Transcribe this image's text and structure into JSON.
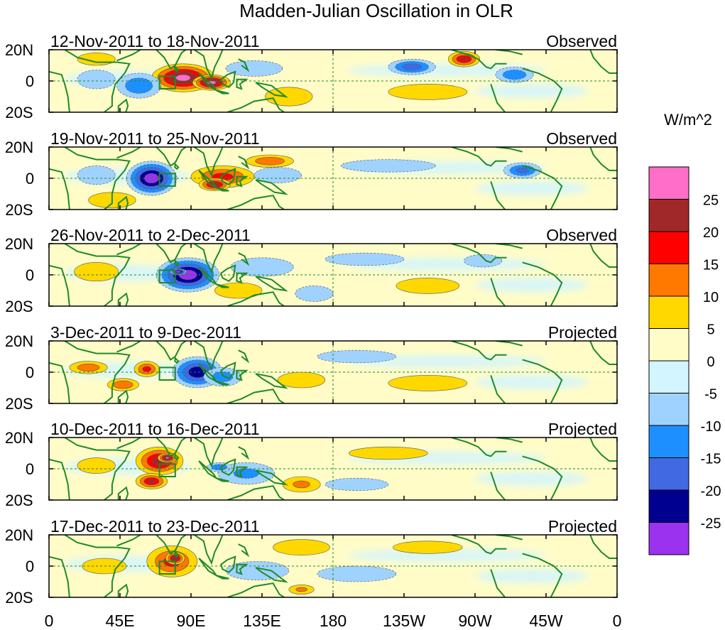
{
  "chart_data": {
    "type": "heatmap",
    "title": "Madden-Julian Oscillation in OLR",
    "units_label": "W/m^2",
    "colorbar": {
      "colors": [
        "#9a32f0",
        "#000090",
        "#4169e1",
        "#1e8fff",
        "#a0d2ff",
        "#d2f5ff",
        "#fffcc8",
        "#ffd800",
        "#ff7800",
        "#ff0000",
        "#a02828",
        "#ff6ec8"
      ],
      "tick_labels": [
        "25",
        "20",
        "15",
        "10",
        "5",
        "0",
        "-5",
        "-10",
        "-15",
        "-20",
        "-25"
      ]
    },
    "x_tick_labels": [
      "0",
      "45E",
      "90E",
      "135E",
      "180",
      "135W",
      "90W",
      "45W",
      "0"
    ],
    "lat_labels": [
      "20N",
      "0",
      "20S"
    ],
    "panels": [
      {
        "date": "12-Nov-2011 to 18-Nov-2011",
        "status": "Observed",
        "anomalies": [
          {
            "lon": 85,
            "lat": 2,
            "value": 25,
            "rx": 20,
            "ry": 9
          },
          {
            "lon": 103,
            "lat": -1,
            "value": 25,
            "rx": 12,
            "ry": 5
          },
          {
            "lon": 57,
            "lat": -3,
            "value": -12,
            "rx": 14,
            "ry": 8
          },
          {
            "lon": 30,
            "lat": 1,
            "value": -7,
            "rx": 12,
            "ry": 6
          },
          {
            "lon": 130,
            "lat": 8,
            "value": -6,
            "rx": 18,
            "ry": 5
          },
          {
            "lon": 230,
            "lat": 9,
            "value": -16,
            "rx": 15,
            "ry": 5
          },
          {
            "lon": 295,
            "lat": 4,
            "value": -12,
            "rx": 12,
            "ry": 5
          },
          {
            "lon": 263,
            "lat": 14,
            "value": 18,
            "rx": 10,
            "ry": 5
          },
          {
            "lon": 152,
            "lat": -10,
            "value": 6,
            "rx": 15,
            "ry": 6
          },
          {
            "lon": 240,
            "lat": -7,
            "value": 5,
            "rx": 25,
            "ry": 5
          },
          {
            "lon": 30,
            "lat": 14,
            "value": 6,
            "rx": 12,
            "ry": 4
          }
        ]
      },
      {
        "date": "19-Nov-2011 to 25-Nov-2011",
        "status": "Observed",
        "anomalies": [
          {
            "lon": 65,
            "lat": 0,
            "value": -27,
            "rx": 16,
            "ry": 11
          },
          {
            "lon": 110,
            "lat": 1,
            "value": 14,
            "rx": 20,
            "ry": 7
          },
          {
            "lon": 105,
            "lat": -4,
            "value": 20,
            "rx": 10,
            "ry": 4
          },
          {
            "lon": 140,
            "lat": 11,
            "value": 12,
            "rx": 15,
            "ry": 4
          },
          {
            "lon": 30,
            "lat": 2,
            "value": -7,
            "rx": 12,
            "ry": 6
          },
          {
            "lon": 300,
            "lat": 5,
            "value": -14,
            "rx": 12,
            "ry": 5
          },
          {
            "lon": 40,
            "lat": -14,
            "value": 5,
            "rx": 15,
            "ry": 5
          },
          {
            "lon": 145,
            "lat": 2,
            "value": -4,
            "rx": 15,
            "ry": 5
          },
          {
            "lon": 215,
            "lat": 8,
            "value": -4,
            "rx": 30,
            "ry": 4
          }
        ]
      },
      {
        "date": "26-Nov-2011 to 2-Dec-2011",
        "status": "Observed",
        "anomalies": [
          {
            "lon": 88,
            "lat": 0,
            "value": -27,
            "rx": 20,
            "ry": 11
          },
          {
            "lon": 82,
            "lat": 2,
            "value": -29,
            "rx": 5,
            "ry": 2
          },
          {
            "lon": 135,
            "lat": 5,
            "value": -6,
            "rx": 20,
            "ry": 6
          },
          {
            "lon": 168,
            "lat": -12,
            "value": -7,
            "rx": 12,
            "ry": 5
          },
          {
            "lon": 30,
            "lat": 2,
            "value": 6,
            "rx": 14,
            "ry": 6
          },
          {
            "lon": 120,
            "lat": -10,
            "value": 4,
            "rx": 15,
            "ry": 5
          },
          {
            "lon": 240,
            "lat": -7,
            "value": 5,
            "rx": 20,
            "ry": 5
          },
          {
            "lon": 275,
            "lat": 9,
            "value": -6,
            "rx": 12,
            "ry": 4
          },
          {
            "lon": 200,
            "lat": 10,
            "value": -4,
            "rx": 25,
            "ry": 4
          }
        ]
      },
      {
        "date": "3-Dec-2011 to 9-Dec-2011",
        "status": "Projected",
        "anomalies": [
          {
            "lon": 94,
            "lat": 0,
            "value": -22,
            "rx": 16,
            "ry": 10
          },
          {
            "lon": 110,
            "lat": -3,
            "value": -10,
            "rx": 12,
            "ry": 6
          },
          {
            "lon": 62,
            "lat": 2,
            "value": 14,
            "rx": 8,
            "ry": 5
          },
          {
            "lon": 25,
            "lat": 3,
            "value": 11,
            "rx": 12,
            "ry": 4
          },
          {
            "lon": 47,
            "lat": -8,
            "value": 12,
            "rx": 10,
            "ry": 4
          },
          {
            "lon": 160,
            "lat": -5,
            "value": 6,
            "rx": 15,
            "ry": 5
          },
          {
            "lon": 240,
            "lat": -7,
            "value": 6,
            "rx": 25,
            "ry": 5
          },
          {
            "lon": 195,
            "lat": 10,
            "value": -5,
            "rx": 25,
            "ry": 4
          }
        ]
      },
      {
        "date": "10-Dec-2011 to 16-Dec-2011",
        "status": "Projected",
        "anomalies": [
          {
            "lon": 70,
            "lat": 5,
            "value": 20,
            "rx": 15,
            "ry": 9
          },
          {
            "lon": 75,
            "lat": 7,
            "value": 23,
            "rx": 6,
            "ry": 3
          },
          {
            "lon": 65,
            "lat": -8,
            "value": 18,
            "rx": 10,
            "ry": 5
          },
          {
            "lon": 125,
            "lat": -3,
            "value": -8,
            "rx": 18,
            "ry": 7
          },
          {
            "lon": 108,
            "lat": 1,
            "value": -12,
            "rx": 8,
            "ry": 3
          },
          {
            "lon": 160,
            "lat": -10,
            "value": 8,
            "rx": 12,
            "ry": 5
          },
          {
            "lon": 30,
            "lat": 2,
            "value": 5,
            "rx": 12,
            "ry": 5
          },
          {
            "lon": 215,
            "lat": 10,
            "value": 5,
            "rx": 25,
            "ry": 4
          },
          {
            "lon": 195,
            "lat": -10,
            "value": -5,
            "rx": 20,
            "ry": 4
          }
        ]
      },
      {
        "date": "17-Dec-2011 to 23-Dec-2011",
        "status": "Projected",
        "anomalies": [
          {
            "lon": 78,
            "lat": 3,
            "value": 14,
            "rx": 16,
            "ry": 10
          },
          {
            "lon": 80,
            "lat": 5,
            "value": 21,
            "rx": 6,
            "ry": 4
          },
          {
            "lon": 160,
            "lat": 12,
            "value": 5,
            "rx": 18,
            "ry": 5
          },
          {
            "lon": 240,
            "lat": 12,
            "value": 5,
            "rx": 22,
            "ry": 4
          },
          {
            "lon": 132,
            "lat": -3,
            "value": -5,
            "rx": 20,
            "ry": 6
          },
          {
            "lon": 160,
            "lat": -15,
            "value": 8,
            "rx": 8,
            "ry": 3
          },
          {
            "lon": 35,
            "lat": 0,
            "value": 4,
            "rx": 14,
            "ry": 5
          },
          {
            "lon": 195,
            "lat": -5,
            "value": -4,
            "rx": 25,
            "ry": 5
          }
        ]
      }
    ]
  }
}
